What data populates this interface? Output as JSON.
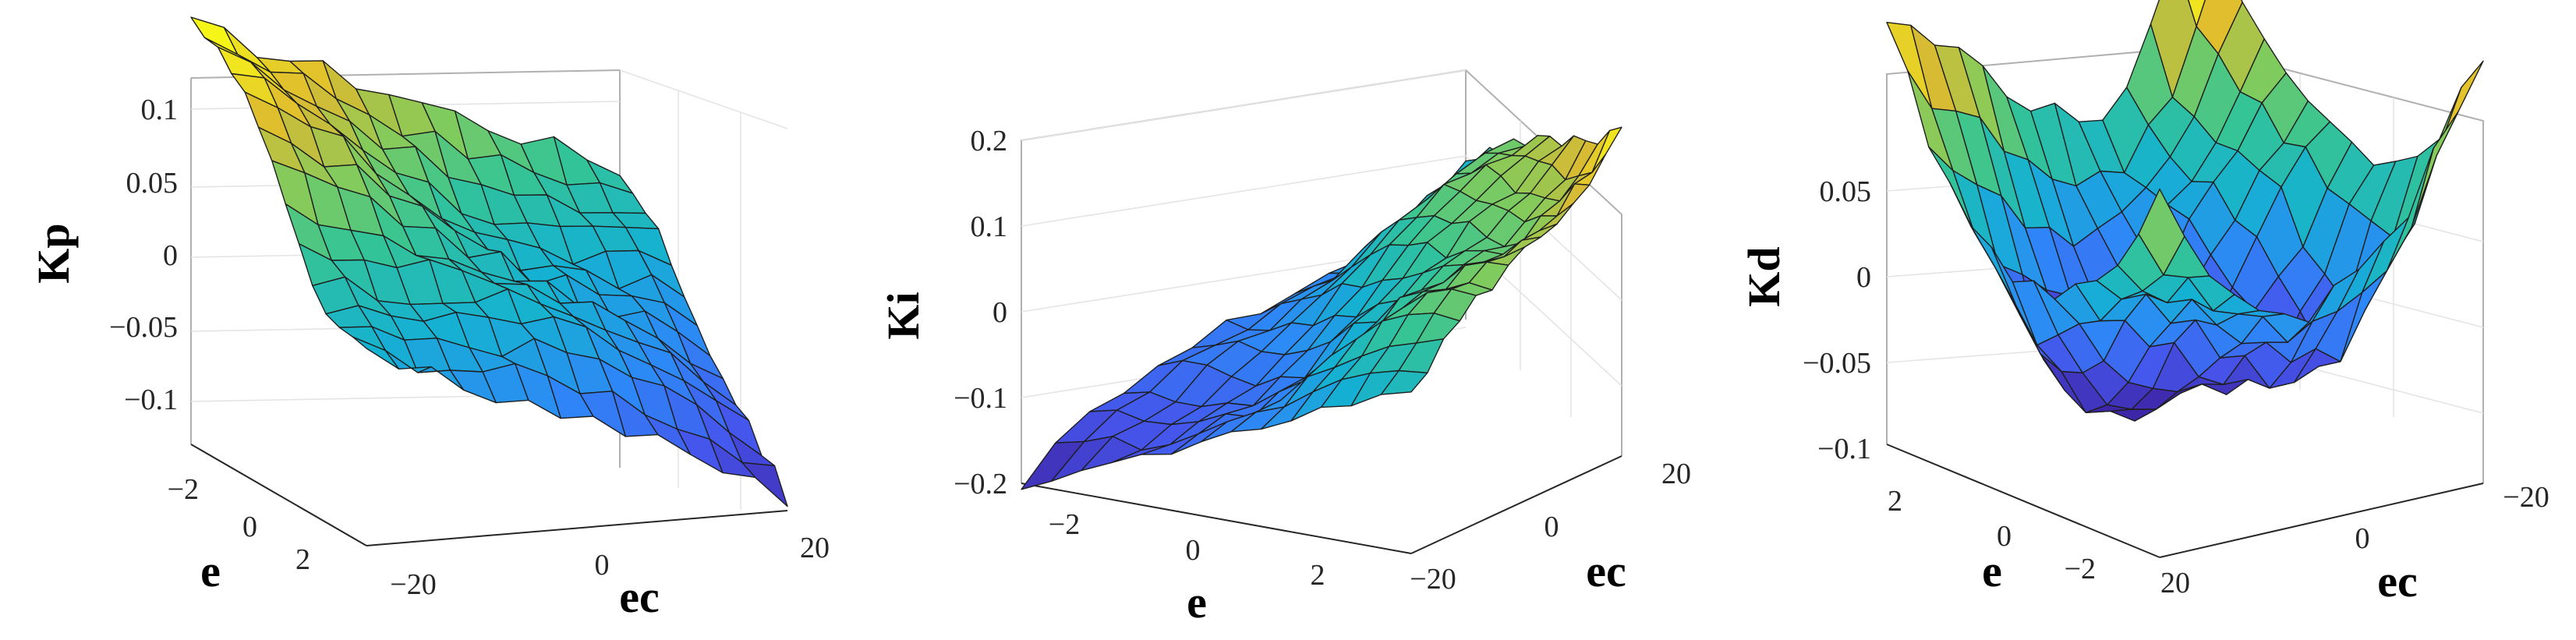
{
  "chart_data": [
    {
      "type": "surface",
      "zlabel": "Kp",
      "xlabel": "e",
      "ylabel": "ec",
      "e_ticks": [
        "−2",
        "0",
        "2"
      ],
      "ec_ticks": [
        "−20",
        "0",
        "20"
      ],
      "z_ticks": [
        "0.1",
        "0.05",
        "0",
        "−0.05",
        "−0.1"
      ],
      "z_tick_values": [
        0.1,
        0.05,
        0,
        -0.05,
        -0.1
      ],
      "zlim": [
        -0.15,
        0.13
      ],
      "e_range": [
        -3,
        3
      ],
      "ec_range": [
        -30,
        30
      ],
      "grid": true,
      "colormap": "parula",
      "surface_trend": {
        "z_at_e_min_ec_min": 0.13,
        "z_at_e_max_ec_max": -0.14
      }
    },
    {
      "type": "surface",
      "zlabel": "Ki",
      "xlabel": "e",
      "ylabel": "ec",
      "e_ticks": [
        "−2",
        "0",
        "2"
      ],
      "ec_ticks": [
        "−20",
        "0",
        "20"
      ],
      "z_ticks": [
        "0.2",
        "0.1",
        "0",
        "−0.1",
        "−0.2"
      ],
      "z_tick_values": [
        0.2,
        0.1,
        0,
        -0.1,
        -0.2
      ],
      "zlim": [
        -0.2,
        0.2
      ],
      "e_range": [
        -3,
        3
      ],
      "ec_range": [
        -30,
        30
      ],
      "grid": true,
      "colormap": "parula",
      "surface_trend": {
        "z_at_e_min_ec_min": -0.2,
        "z_at_e_max_ec_max": 0.2
      }
    },
    {
      "type": "surface",
      "zlabel": "Kd",
      "xlabel": "e",
      "ylabel": "ec",
      "e_ticks": [
        "2",
        "0",
        "−2"
      ],
      "ec_ticks": [
        "20",
        "0",
        "−20"
      ],
      "z_ticks": [
        "0.05",
        "0",
        "−0.05",
        "−0.1"
      ],
      "z_tick_values": [
        0.05,
        0,
        -0.05,
        -0.1
      ],
      "zlim": [
        -0.1,
        0.09
      ],
      "e_range": [
        -3,
        3
      ],
      "ec_range": [
        -30,
        30
      ],
      "grid": true,
      "colormap": "parula",
      "surface_trend": {
        "z_min_near": "e=0, ec=0",
        "z_min": -0.1,
        "z_max": 0.09
      }
    }
  ],
  "colors": {
    "parula_low": "#3e26a8",
    "parula_mid": "#1fa7d9",
    "parula_green": "#4bbd82",
    "parula_high": "#f9fb15",
    "axis": "#262626",
    "grid": "#e4e4e4"
  }
}
